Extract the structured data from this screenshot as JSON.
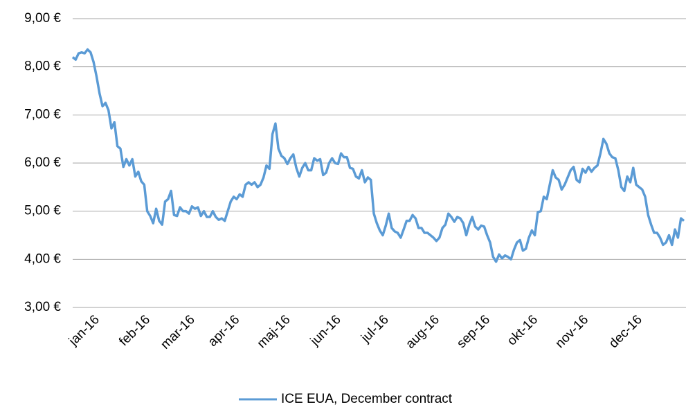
{
  "chart_data": {
    "type": "line",
    "categories": [
      null,
      null,
      null,
      null,
      null,
      null,
      "jan-16",
      null,
      null,
      null,
      null,
      null,
      null,
      null,
      null,
      null,
      null,
      null,
      null,
      null,
      null,
      null,
      null,
      "feb-16",
      null,
      null,
      null,
      null,
      null,
      null,
      null,
      null,
      null,
      null,
      null,
      null,
      null,
      null,
      "mar-16",
      null,
      null,
      null,
      null,
      null,
      null,
      null,
      null,
      null,
      null,
      null,
      null,
      null,
      null,
      "apr-16",
      null,
      null,
      null,
      null,
      null,
      null,
      null,
      null,
      null,
      null,
      null,
      null,
      null,
      null,
      null,
      null,
      "maj-16",
      null,
      null,
      null,
      null,
      null,
      null,
      null,
      null,
      null,
      null,
      null,
      null,
      null,
      null,
      null,
      null,
      "jun-16",
      null,
      null,
      null,
      null,
      null,
      null,
      null,
      null,
      null,
      null,
      null,
      null,
      null,
      null,
      null,
      "jul-16",
      null,
      null,
      null,
      null,
      null,
      null,
      null,
      null,
      null,
      null,
      null,
      null,
      null,
      null,
      null,
      null,
      "aug-16",
      null,
      null,
      null,
      null,
      null,
      null,
      null,
      null,
      null,
      null,
      null,
      null,
      null,
      null,
      null,
      null,
      "sep-16",
      null,
      null,
      null,
      null,
      null,
      null,
      null,
      null,
      null,
      null,
      null,
      null,
      null,
      null,
      null,
      "okt-16",
      null,
      null,
      null,
      null,
      null,
      null,
      null,
      null,
      null,
      null,
      null,
      null,
      null,
      null,
      null,
      null,
      "nov-16",
      null,
      null,
      null,
      null,
      null,
      null,
      null,
      null,
      null,
      null,
      null,
      null,
      null,
      null,
      null,
      null,
      null,
      "dec-16",
      null,
      null,
      null,
      null,
      null,
      null,
      null,
      null,
      null,
      null,
      null,
      null,
      null,
      null,
      null,
      null,
      null
    ],
    "series": [
      {
        "name": "ICE EUA, December contract",
        "color": "#5b9bd5",
        "values": [
          8.2,
          8.15,
          8.28,
          8.3,
          8.28,
          8.36,
          8.3,
          8.1,
          7.8,
          7.45,
          7.18,
          7.25,
          7.1,
          6.72,
          6.85,
          6.35,
          6.3,
          5.92,
          6.08,
          5.95,
          6.08,
          5.72,
          5.82,
          5.62,
          5.55,
          5.0,
          4.9,
          4.75,
          5.05,
          4.8,
          4.72,
          5.2,
          5.25,
          5.42,
          4.92,
          4.9,
          5.08,
          5.0,
          5.0,
          4.95,
          5.1,
          5.05,
          5.08,
          4.9,
          5.0,
          4.88,
          4.88,
          5.0,
          4.88,
          4.82,
          4.85,
          4.8,
          5.0,
          5.2,
          5.3,
          5.25,
          5.35,
          5.3,
          5.55,
          5.6,
          5.55,
          5.6,
          5.5,
          5.55,
          5.7,
          5.95,
          5.88,
          6.6,
          6.82,
          6.3,
          6.15,
          6.1,
          5.98,
          6.1,
          6.18,
          5.9,
          5.72,
          5.9,
          6.0,
          5.85,
          5.85,
          6.1,
          6.05,
          6.08,
          5.75,
          5.8,
          6.0,
          6.1,
          6.0,
          5.98,
          6.2,
          6.12,
          6.12,
          5.9,
          5.88,
          5.72,
          5.68,
          5.85,
          5.6,
          5.7,
          5.65,
          4.95,
          4.75,
          4.6,
          4.5,
          4.7,
          4.95,
          4.65,
          4.58,
          4.55,
          4.45,
          4.62,
          4.8,
          4.8,
          4.92,
          4.85,
          4.65,
          4.65,
          4.55,
          4.55,
          4.5,
          4.45,
          4.38,
          4.45,
          4.65,
          4.72,
          4.95,
          4.88,
          4.78,
          4.88,
          4.85,
          4.75,
          4.5,
          4.72,
          4.88,
          4.68,
          4.62,
          4.7,
          4.68,
          4.5,
          4.35,
          4.05,
          3.95,
          4.1,
          4.02,
          4.08,
          4.05,
          4.0,
          4.2,
          4.35,
          4.4,
          4.18,
          4.22,
          4.45,
          4.6,
          4.5,
          4.98,
          5.0,
          5.3,
          5.25,
          5.55,
          5.85,
          5.7,
          5.65,
          5.45,
          5.55,
          5.7,
          5.85,
          5.92,
          5.65,
          5.6,
          5.88,
          5.8,
          5.92,
          5.82,
          5.9,
          5.95,
          6.2,
          6.5,
          6.4,
          6.2,
          6.12,
          6.1,
          5.85,
          5.5,
          5.42,
          5.72,
          5.6,
          5.9,
          5.55,
          5.5,
          5.45,
          5.3,
          4.92,
          4.72,
          4.55,
          4.55,
          4.45,
          4.3,
          4.35,
          4.5,
          4.3,
          4.62,
          4.45,
          4.85,
          4.8
        ]
      }
    ],
    "ylim": [
      3,
      9
    ],
    "yticks": [
      {
        "value": 3,
        "label": "3,00 €"
      },
      {
        "value": 4,
        "label": "4,00 €"
      },
      {
        "value": 5,
        "label": "5,00 €"
      },
      {
        "value": 6,
        "label": "6,00 €"
      },
      {
        "value": 7,
        "label": "7,00 €"
      },
      {
        "value": 8,
        "label": "8,00 €"
      },
      {
        "value": 9,
        "label": "9,00 €"
      }
    ],
    "grid": true,
    "legend": "bottom"
  }
}
